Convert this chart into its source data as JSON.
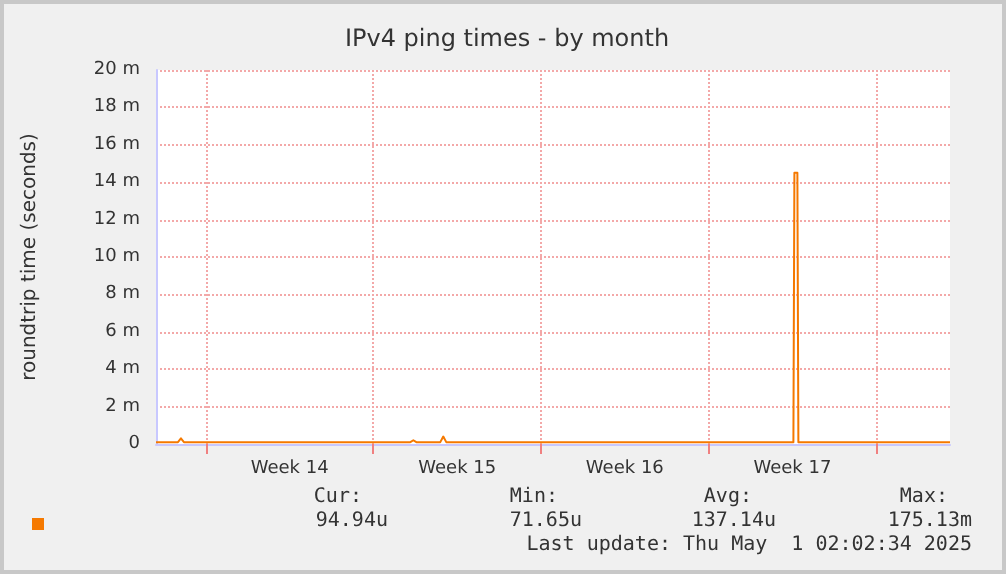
{
  "chart_data": {
    "type": "line",
    "title": "IPv4 ping times - by month",
    "ylabel": "roundtrip time (seconds)",
    "x": [
      "2025-03-28T22:00",
      "2025-03-29T20:00",
      "2025-03-29T23:00",
      "2025-03-30T02:00",
      "2025-04-08T13:00",
      "2025-04-08T16:00",
      "2025-04-08T19:00",
      "2025-04-09T19:00",
      "2025-04-09T22:00",
      "2025-04-10T01:00",
      "2025-04-24T13:00",
      "2025-04-24T14:00",
      "2025-04-24T17:00",
      "2025-04-24T18:00",
      "2025-05-01T02:00"
    ],
    "series": [
      {
        "color": "#f57900",
        "values": [
          0.1,
          0.1,
          0.3,
          0.1,
          0.1,
          0.2,
          0.1,
          0.1,
          0.4,
          0.1,
          0.1,
          14.5,
          14.5,
          0.1,
          0.1
        ]
      }
    ],
    "xlim": [
      "2025-03-28T22:00",
      "2025-05-01T02:00"
    ],
    "xticks": [
      {
        "value": "2025-03-31T00:00",
        "label": null
      },
      {
        "value": "2025-04-03T12:00",
        "label": "Week 14"
      },
      {
        "value": "2025-04-07T00:00",
        "label": null
      },
      {
        "value": "2025-04-10T12:00",
        "label": "Week 15"
      },
      {
        "value": "2025-04-14T00:00",
        "label": null
      },
      {
        "value": "2025-04-17T12:00",
        "label": "Week 16"
      },
      {
        "value": "2025-04-21T00:00",
        "label": null
      },
      {
        "value": "2025-04-24T12:00",
        "label": "Week 17"
      },
      {
        "value": "2025-04-28T00:00",
        "label": null
      }
    ],
    "ylim": [
      0,
      20
    ],
    "yticks": [
      0,
      {
        "value": 2,
        "label": "2 m"
      },
      {
        "value": 4,
        "label": "4 m"
      },
      {
        "value": 6,
        "label": "6 m"
      },
      {
        "value": 8,
        "label": "8 m"
      },
      {
        "value": 10,
        "label": "10 m"
      },
      {
        "value": 12,
        "label": "12 m"
      },
      {
        "value": 14,
        "label": "14 m"
      },
      {
        "value": 16,
        "label": "16 m"
      },
      {
        "value": 18,
        "label": "18 m"
      },
      {
        "value": 20,
        "label": "20 m"
      }
    ],
    "grid": true,
    "marker": "none",
    "annotations": [
      "Cur:",
      "Min:",
      "Avg:",
      "Max:",
      "94.94u",
      "71.65u",
      "137.14u",
      "175.13m",
      "Last update: Thu May  1 02:02:34 2025"
    ]
  }
}
